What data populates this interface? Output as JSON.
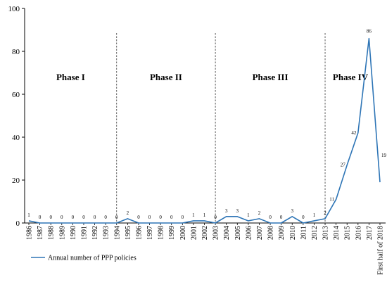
{
  "chart_data": {
    "type": "line",
    "title": "",
    "xlabel": "",
    "ylabel": "",
    "ylim": [
      0,
      100
    ],
    "yticks": [
      0,
      20,
      40,
      60,
      80,
      100
    ],
    "grid": false,
    "legend_placement": "bottom-left",
    "x": [
      "1986",
      "1987",
      "1988",
      "1989",
      "1990",
      "1991",
      "1992",
      "1993",
      "1994",
      "1995",
      "1996",
      "1997",
      "1998",
      "1999",
      "2000",
      "2001",
      "2002",
      "2003",
      "2004",
      "2005",
      "2006",
      "2007",
      "2008",
      "2009",
      "2010",
      "2011",
      "2012",
      "2013",
      "2014",
      "2015",
      "2016",
      "2017",
      "First half of 2018"
    ],
    "series": [
      {
        "name": "Annual number of PPP policies",
        "color": "#2e75b6",
        "values": [
          1,
          0,
          0,
          0,
          0,
          0,
          0,
          0,
          0,
          2,
          0,
          0,
          0,
          0,
          0,
          1,
          1,
          0,
          3,
          3,
          1,
          2,
          0,
          0,
          3,
          0,
          1,
          2,
          11,
          27,
          42,
          86,
          19
        ]
      }
    ],
    "phases": [
      {
        "label": "Phase I",
        "start": "1986",
        "end": "1994"
      },
      {
        "label": "Phase II",
        "start": "1994",
        "end": "2003"
      },
      {
        "label": "Phase III",
        "start": "2003",
        "end": "2013"
      },
      {
        "label": "Phase IV",
        "start": "2013",
        "end": "First half of 2018"
      }
    ],
    "phase_dividers": [
      "1994",
      "2003",
      "2013"
    ]
  }
}
